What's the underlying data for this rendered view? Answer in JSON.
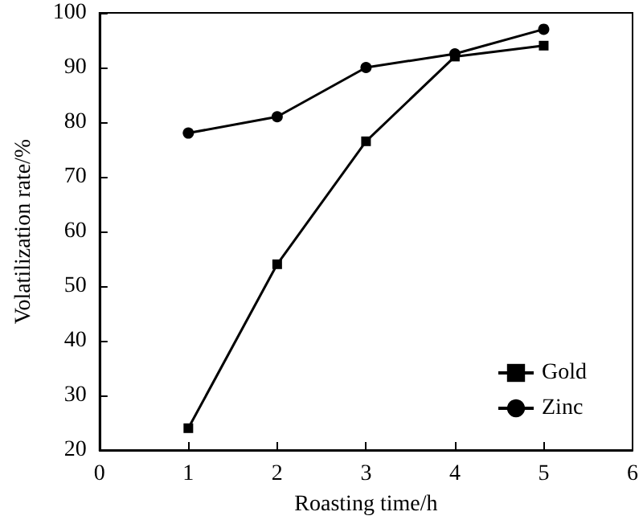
{
  "chart_data": {
    "type": "line",
    "xlabel": "Roasting time/h",
    "ylabel": "Volatilization rate/%",
    "x": [
      1,
      2,
      3,
      4,
      5
    ],
    "xlim": [
      0,
      6
    ],
    "xticks": [
      0,
      1,
      2,
      3,
      4,
      5,
      6
    ],
    "ylim": [
      20,
      100
    ],
    "yticks": [
      20,
      30,
      40,
      50,
      60,
      70,
      80,
      90,
      100
    ],
    "grid": false,
    "legend": "bottom right",
    "line_style": "solid",
    "series": [
      {
        "name": "Gold",
        "color": "#000000",
        "marker": "square",
        "values": [
          24,
          54,
          76.5,
          92,
          94
        ]
      },
      {
        "name": "Zinc",
        "color": "#000000",
        "marker": "circle",
        "values": [
          78,
          81,
          90,
          92.5,
          97
        ]
      }
    ]
  }
}
